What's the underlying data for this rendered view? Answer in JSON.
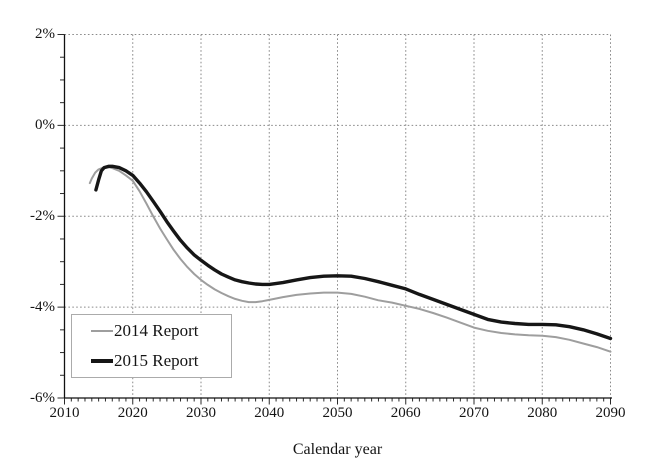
{
  "chart_data": {
    "type": "line",
    "title": "",
    "xlabel": "Calendar year",
    "ylabel": "",
    "x_range": [
      2010,
      2090
    ],
    "y_range": [
      -6,
      2
    ],
    "x_major_ticks": [
      2010,
      2020,
      2030,
      2040,
      2050,
      2060,
      2070,
      2080,
      2090
    ],
    "x_tick_labels": [
      "2010",
      "2020",
      "2030",
      "2040",
      "2050",
      "2060",
      "2070",
      "2080",
      "2090"
    ],
    "x_minor_tick_step": 1,
    "y_major_ticks": [
      2,
      0,
      -2,
      -4,
      -6
    ],
    "y_tick_labels": [
      "2%",
      "0%",
      "-2%",
      "-4%",
      "-6%"
    ],
    "y_minor_tick_step": 0.5,
    "grid": "dotted gray major gridlines, solid left and bottom axes",
    "grid_color": "#8a8a8a",
    "axis_color": "#111111",
    "legend": {
      "position": "lower-left",
      "border_color": "#ababab",
      "background": "#ffffff"
    },
    "series": [
      {
        "name": "2014 Report",
        "color": "#9e9e9e",
        "stroke_width": 2,
        "points": [
          [
            2013.7,
            -1.27
          ],
          [
            2014,
            -1.17
          ],
          [
            2014.5,
            -1.04
          ],
          [
            2015,
            -0.97
          ],
          [
            2015.5,
            -0.94
          ],
          [
            2016,
            -0.92
          ],
          [
            2016.5,
            -0.92
          ],
          [
            2017,
            -0.94
          ],
          [
            2018,
            -1.0
          ],
          [
            2019,
            -1.1
          ],
          [
            2020,
            -1.22
          ],
          [
            2021,
            -1.45
          ],
          [
            2022,
            -1.72
          ],
          [
            2023,
            -2.0
          ],
          [
            2024,
            -2.27
          ],
          [
            2025,
            -2.51
          ],
          [
            2026,
            -2.74
          ],
          [
            2027,
            -2.94
          ],
          [
            2028,
            -3.12
          ],
          [
            2029,
            -3.27
          ],
          [
            2030,
            -3.4
          ],
          [
            2031,
            -3.51
          ],
          [
            2032,
            -3.61
          ],
          [
            2033,
            -3.69
          ],
          [
            2034,
            -3.76
          ],
          [
            2035,
            -3.82
          ],
          [
            2036,
            -3.86
          ],
          [
            2037,
            -3.89
          ],
          [
            2038,
            -3.89
          ],
          [
            2039,
            -3.87
          ],
          [
            2040,
            -3.84
          ],
          [
            2042,
            -3.78
          ],
          [
            2044,
            -3.73
          ],
          [
            2046,
            -3.7
          ],
          [
            2048,
            -3.68
          ],
          [
            2050,
            -3.68
          ],
          [
            2052,
            -3.71
          ],
          [
            2054,
            -3.77
          ],
          [
            2056,
            -3.85
          ],
          [
            2058,
            -3.9
          ],
          [
            2060,
            -3.97
          ],
          [
            2062,
            -4.04
          ],
          [
            2064,
            -4.13
          ],
          [
            2066,
            -4.23
          ],
          [
            2068,
            -4.34
          ],
          [
            2070,
            -4.45
          ],
          [
            2072,
            -4.52
          ],
          [
            2074,
            -4.57
          ],
          [
            2076,
            -4.6
          ],
          [
            2078,
            -4.62
          ],
          [
            2080,
            -4.63
          ],
          [
            2082,
            -4.66
          ],
          [
            2084,
            -4.72
          ],
          [
            2086,
            -4.8
          ],
          [
            2088,
            -4.88
          ],
          [
            2090,
            -4.98
          ]
        ]
      },
      {
        "name": "2015 Report",
        "color": "#161616",
        "stroke_width": 3.4,
        "points": [
          [
            2014.6,
            -1.42
          ],
          [
            2015,
            -1.2
          ],
          [
            2015.4,
            -1.0
          ],
          [
            2015.8,
            -0.93
          ],
          [
            2016.5,
            -0.9
          ],
          [
            2017,
            -0.9
          ],
          [
            2018,
            -0.93
          ],
          [
            2019,
            -1.0
          ],
          [
            2020,
            -1.1
          ],
          [
            2021,
            -1.27
          ],
          [
            2022,
            -1.46
          ],
          [
            2023,
            -1.67
          ],
          [
            2024,
            -1.89
          ],
          [
            2025,
            -2.12
          ],
          [
            2026,
            -2.33
          ],
          [
            2027,
            -2.53
          ],
          [
            2028,
            -2.7
          ],
          [
            2029,
            -2.85
          ],
          [
            2030,
            -2.97
          ],
          [
            2031,
            -3.08
          ],
          [
            2032,
            -3.18
          ],
          [
            2033,
            -3.27
          ],
          [
            2034,
            -3.34
          ],
          [
            2035,
            -3.4
          ],
          [
            2036,
            -3.44
          ],
          [
            2037,
            -3.47
          ],
          [
            2038,
            -3.49
          ],
          [
            2039,
            -3.5
          ],
          [
            2040,
            -3.5
          ],
          [
            2042,
            -3.46
          ],
          [
            2044,
            -3.4
          ],
          [
            2046,
            -3.35
          ],
          [
            2048,
            -3.32
          ],
          [
            2050,
            -3.31
          ],
          [
            2052,
            -3.32
          ],
          [
            2054,
            -3.37
          ],
          [
            2056,
            -3.44
          ],
          [
            2058,
            -3.52
          ],
          [
            2060,
            -3.6
          ],
          [
            2062,
            -3.72
          ],
          [
            2064,
            -3.83
          ],
          [
            2066,
            -3.94
          ],
          [
            2068,
            -4.05
          ],
          [
            2070,
            -4.16
          ],
          [
            2072,
            -4.27
          ],
          [
            2074,
            -4.33
          ],
          [
            2076,
            -4.36
          ],
          [
            2078,
            -4.38
          ],
          [
            2080,
            -4.38
          ],
          [
            2082,
            -4.39
          ],
          [
            2084,
            -4.43
          ],
          [
            2086,
            -4.5
          ],
          [
            2088,
            -4.59
          ],
          [
            2090,
            -4.69
          ]
        ]
      }
    ]
  }
}
